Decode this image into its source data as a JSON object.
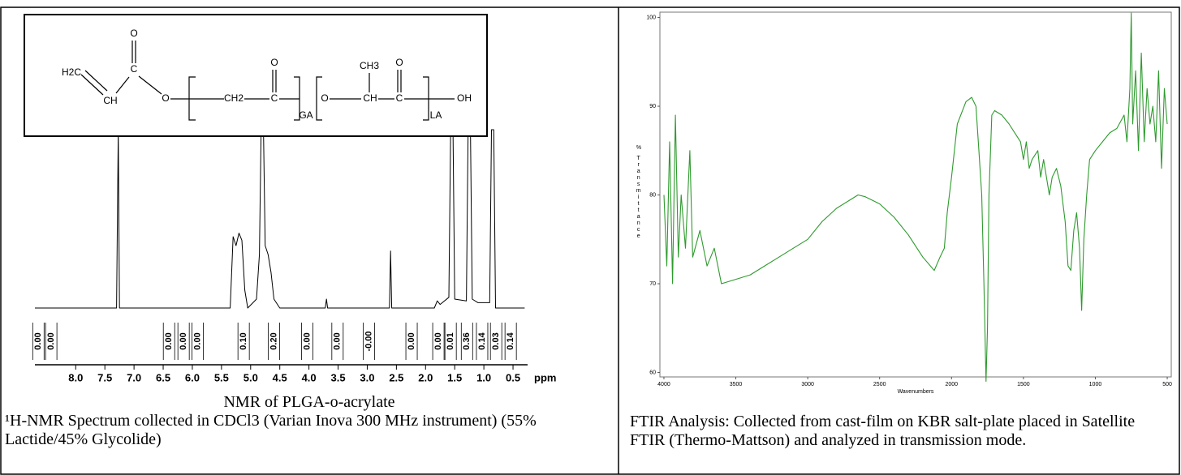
{
  "left": {
    "figure": {
      "type": "line",
      "structure": {
        "labels": [
          "O",
          "H2C",
          "C",
          "CH",
          "O",
          "CH2",
          "O",
          "C",
          "GA",
          "O",
          "CH3",
          "CH",
          "O",
          "C",
          "LA",
          "OH"
        ]
      },
      "x": [
        8.7,
        7.3,
        7.27,
        7.25,
        5.35,
        5.3,
        5.25,
        5.2,
        5.15,
        5.1,
        5.05,
        4.9,
        4.85,
        4.82,
        4.78,
        4.75,
        4.7,
        4.65,
        4.6,
        4.5,
        3.72,
        3.7,
        3.68,
        2.62,
        2.6,
        2.58,
        1.85,
        1.8,
        1.75,
        1.6,
        1.57,
        1.53,
        1.5,
        1.3,
        1.27,
        1.23,
        1.2,
        1.1,
        0.9,
        0.87,
        0.83,
        0.8,
        0.3
      ],
      "y": [
        0,
        0,
        100,
        0,
        0,
        40,
        35,
        42,
        38,
        10,
        0,
        5,
        30,
        100,
        100,
        35,
        30,
        20,
        5,
        0,
        0,
        5,
        0,
        0,
        32,
        0,
        0,
        4,
        2,
        6,
        100,
        100,
        5,
        4,
        100,
        100,
        5,
        3,
        3,
        100,
        100,
        0,
        0
      ],
      "xlim": [
        8.7,
        0.25
      ],
      "ylim": [
        0,
        100
      ],
      "xticks": [
        {
          "value": 8,
          "label": "8.0"
        },
        {
          "value": 7.5,
          "label": "7.5"
        },
        {
          "value": 7,
          "label": "7.0"
        },
        {
          "value": 6.5,
          "label": "6.5"
        },
        {
          "value": 6,
          "label": "6.0"
        },
        {
          "value": 5.5,
          "label": "5.5"
        },
        {
          "value": 5,
          "label": "5.0"
        },
        {
          "value": 4.5,
          "label": "4.5"
        },
        {
          "value": 4,
          "label": "4.0"
        },
        {
          "value": 3.5,
          "label": "3.5"
        },
        {
          "value": 3,
          "label": "3.0"
        },
        {
          "value": 2.5,
          "label": "2.5"
        },
        {
          "value": 2,
          "label": "2.0"
        },
        {
          "value": 1.5,
          "label": "1.5"
        },
        {
          "value": 1,
          "label": "1.0"
        },
        {
          "value": 0.5,
          "label": "0.5"
        }
      ],
      "xlabel": "ppm",
      "color": "#000000",
      "integrals": [
        {
          "ppm": 8.64,
          "label": "0.00"
        },
        {
          "ppm": 8.42,
          "label": "0.00"
        },
        {
          "ppm": 6.4,
          "label": "0.00"
        },
        {
          "ppm": 6.15,
          "label": "0.00"
        },
        {
          "ppm": 5.91,
          "label": "0.00"
        },
        {
          "ppm": 5.12,
          "label": "0.10"
        },
        {
          "ppm": 4.6,
          "label": "0.20"
        },
        {
          "ppm": 4.03,
          "label": "0.00"
        },
        {
          "ppm": 3.51,
          "label": "0.00"
        },
        {
          "ppm": 2.97,
          "label": "-0.00"
        },
        {
          "ppm": 2.24,
          "label": "0.00"
        },
        {
          "ppm": 1.78,
          "label": "0.00"
        },
        {
          "ppm": 1.57,
          "label": "0.01"
        },
        {
          "ppm": 1.29,
          "label": "0.36"
        },
        {
          "ppm": 1.03,
          "label": "0.14"
        },
        {
          "ppm": 0.79,
          "label": "0.03"
        },
        {
          "ppm": 0.54,
          "label": "0.14"
        }
      ]
    },
    "caption": "NMR of PLGA-o-acrylate",
    "text": "¹H-NMR Spectrum collected in CDCl3 (Varian Inova 300 MHz instrument) (55% Lactide/45% Glycolide)"
  },
  "right": {
    "figure": {
      "type": "line",
      "x": [
        4000,
        3980,
        3960,
        3940,
        3920,
        3900,
        3880,
        3850,
        3820,
        3800,
        3750,
        3700,
        3650,
        3600,
        3500,
        3400,
        3300,
        3200,
        3100,
        3000,
        2900,
        2800,
        2700,
        2650,
        2600,
        2500,
        2400,
        2300,
        2200,
        2120,
        2080,
        2050,
        2030,
        2000,
        1960,
        1900,
        1860,
        1830,
        1810,
        1790,
        1775,
        1760,
        1750,
        1740,
        1720,
        1700,
        1650,
        1600,
        1560,
        1520,
        1500,
        1480,
        1460,
        1440,
        1400,
        1380,
        1360,
        1320,
        1300,
        1270,
        1240,
        1210,
        1190,
        1170,
        1150,
        1130,
        1110,
        1095,
        1080,
        1060,
        1040,
        1000,
        950,
        900,
        850,
        800,
        780,
        760,
        750,
        740,
        720,
        700,
        680,
        660,
        640,
        620,
        600,
        580,
        560,
        540,
        520,
        500
      ],
      "y": [
        80,
        72,
        86,
        70,
        89,
        73,
        80,
        74,
        85,
        73,
        76,
        72,
        74,
        70,
        70.5,
        71,
        72,
        73,
        74,
        75,
        77,
        78.5,
        79.5,
        80,
        79.8,
        79,
        77.5,
        75.5,
        73,
        71.5,
        73,
        74,
        78,
        82,
        88,
        90.5,
        91,
        90,
        85,
        80,
        70,
        59,
        65,
        80,
        89,
        89.5,
        89,
        88,
        87,
        86,
        84,
        86,
        83,
        84,
        85,
        82,
        84,
        80,
        82,
        83,
        81,
        77,
        72,
        71.5,
        76,
        78,
        74,
        67,
        75,
        80,
        84,
        85,
        86,
        87,
        87.5,
        89,
        86,
        92,
        100.5,
        88,
        94,
        85,
        96,
        86,
        92,
        88,
        90,
        86,
        94,
        83,
        92,
        88
      ],
      "xlim": [
        4028,
        472
      ],
      "ylim": [
        59.5,
        100.6
      ],
      "xticks": [
        4000,
        3500,
        3000,
        2500,
        2000,
        1500,
        1000,
        500
      ],
      "yticks": [
        100,
        90,
        80,
        70,
        60
      ],
      "xlabel": "Wavenumbers",
      "ylabel_symbol": "%",
      "ylabel": "Transmittance",
      "color": "#2e9a2e"
    },
    "caption": "FTIR Analysis: Collected from cast-film on KBR salt-plate placed in Satellite FTIR (Thermo-Mattson) and analyzed in transmission mode."
  }
}
